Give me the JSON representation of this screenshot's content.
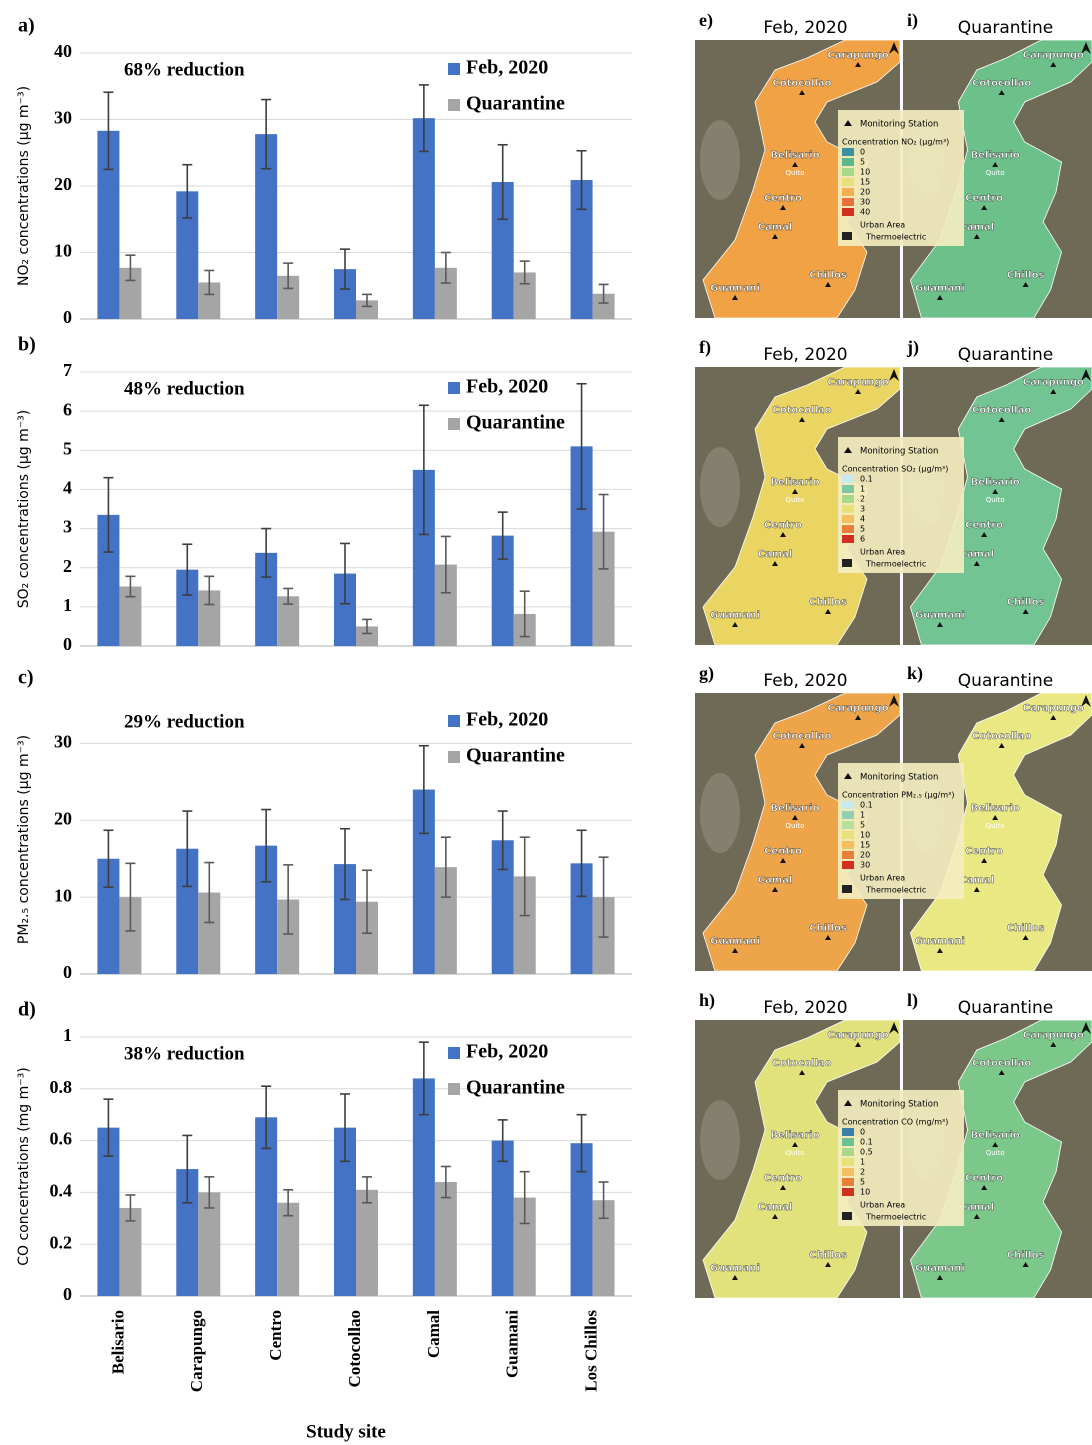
{
  "chart_data": [
    {
      "type": "bar",
      "panel_label": "a)",
      "annotation": "68% reduction",
      "ylabel": "NO₂ concentrations (µg m⁻³)",
      "ylim": [
        0,
        40
      ],
      "yticks": [
        0,
        10,
        20,
        30,
        40
      ],
      "grid": true,
      "legend": "upper right",
      "series": [
        {
          "name": "Feb, 2020",
          "color": "#4472c4",
          "values": [
            28.3,
            19.2,
            27.8,
            7.5,
            30.2,
            20.6,
            20.9
          ],
          "errors": [
            5.8,
            4.0,
            5.2,
            3.0,
            5.0,
            5.6,
            4.4
          ]
        },
        {
          "name": "Quarantine",
          "color": "#a5a5a5",
          "values": [
            7.7,
            5.5,
            6.5,
            2.8,
            7.7,
            7.0,
            3.8
          ],
          "errors": [
            1.9,
            1.8,
            1.9,
            0.9,
            2.3,
            1.7,
            1.4
          ]
        }
      ]
    },
    {
      "type": "bar",
      "panel_label": "b)",
      "annotation": "48% reduction",
      "ylabel": "SO₂ concentrations (µg m⁻³)",
      "ylim": [
        0,
        7
      ],
      "yticks": [
        0,
        1,
        2,
        3,
        4,
        5,
        6,
        7
      ],
      "grid": true,
      "legend": "upper right",
      "series": [
        {
          "name": "Feb, 2020",
          "color": "#4472c4",
          "values": [
            3.35,
            1.95,
            2.38,
            1.85,
            4.5,
            2.82,
            5.1
          ],
          "errors": [
            0.95,
            0.65,
            0.62,
            0.77,
            1.65,
            0.6,
            1.6
          ]
        },
        {
          "name": "Quarantine",
          "color": "#a5a5a5",
          "values": [
            1.52,
            1.42,
            1.27,
            0.5,
            2.08,
            0.82,
            2.92
          ],
          "errors": [
            0.26,
            0.36,
            0.2,
            0.18,
            0.72,
            0.58,
            0.95
          ]
        }
      ]
    },
    {
      "type": "bar",
      "panel_label": "c)",
      "annotation": "29% reduction",
      "ylabel": "PM₂.₅ concentrations (µg m⁻³)",
      "ylim": [
        0,
        35
      ],
      "yticks": [
        0,
        10,
        20,
        30
      ],
      "grid": true,
      "legend": "upper right",
      "series": [
        {
          "name": "Feb, 2020",
          "color": "#4472c4",
          "values": [
            15.0,
            16.3,
            16.7,
            14.3,
            24.0,
            17.4,
            14.4
          ],
          "errors": [
            3.7,
            4.9,
            4.7,
            4.6,
            5.7,
            3.8,
            4.3
          ]
        },
        {
          "name": "Quarantine",
          "color": "#a5a5a5",
          "values": [
            10.0,
            10.6,
            9.7,
            9.4,
            13.9,
            12.7,
            10.0
          ],
          "errors": [
            4.4,
            3.9,
            4.5,
            4.1,
            3.9,
            5.1,
            5.2
          ]
        }
      ]
    },
    {
      "type": "bar",
      "panel_label": "d)",
      "annotation": "38% reduction",
      "ylabel": "CO concentrations (mg m⁻³)",
      "xlabel": "Study site",
      "categories": [
        "Belisario",
        "Carapungo",
        "Centro",
        "Cotocollao",
        "Camal",
        "Guamani",
        "Los Chillos"
      ],
      "ylim": [
        0,
        1
      ],
      "yticks": [
        0,
        0.2,
        0.4,
        0.6,
        0.8,
        1
      ],
      "grid": true,
      "legend": "upper right",
      "series": [
        {
          "name": "Feb, 2020",
          "color": "#4472c4",
          "values": [
            0.65,
            0.49,
            0.69,
            0.65,
            0.84,
            0.6,
            0.59
          ],
          "errors": [
            0.11,
            0.13,
            0.12,
            0.13,
            0.14,
            0.08,
            0.11
          ]
        },
        {
          "name": "Quarantine",
          "color": "#a5a5a5",
          "values": [
            0.34,
            0.4,
            0.36,
            0.41,
            0.44,
            0.38,
            0.37
          ],
          "errors": [
            0.05,
            0.06,
            0.05,
            0.05,
            0.06,
            0.1,
            0.07
          ]
        }
      ]
    }
  ],
  "maps": {
    "stations": [
      "Carapungo",
      "Cotocollao",
      "Belisario",
      "Centro",
      "Camal",
      "Chillos",
      "Guamani"
    ],
    "city": "Quito",
    "legend_station": "Monitoring Station",
    "legend_urban": "Urban Area",
    "legend_thermo": "Thermoelectric",
    "rows": [
      {
        "legend_title": "Concentration NO₂ (µg/m³)",
        "levels": [
          {
            "label": "0",
            "color": "#3a8fa0"
          },
          {
            "label": "5",
            "color": "#5cb88a"
          },
          {
            "label": "10",
            "color": "#a8d88a"
          },
          {
            "label": "15",
            "color": "#e8e07a"
          },
          {
            "label": "20",
            "color": "#f2b050"
          },
          {
            "label": "30",
            "color": "#e8703a"
          },
          {
            "label": "40",
            "color": "#d03020"
          }
        ],
        "panels": [
          {
            "label": "e)",
            "title": "Feb, 2020",
            "color": "#f0a245"
          },
          {
            "label": "i)",
            "title": "Quarantine",
            "color": "#6cc08a"
          }
        ]
      },
      {
        "legend_title": "Concentration SO₂ (µg/m³)",
        "levels": [
          {
            "label": "0.1",
            "color": "#c9e9f0"
          },
          {
            "label": "1",
            "color": "#7cc8a0"
          },
          {
            "label": "2",
            "color": "#a8d88a"
          },
          {
            "label": "3",
            "color": "#e8e07a"
          },
          {
            "label": "4",
            "color": "#f2c060"
          },
          {
            "label": "5",
            "color": "#e8803a"
          },
          {
            "label": "6",
            "color": "#d03020"
          }
        ],
        "panels": [
          {
            "label": "f)",
            "title": "Feb, 2020",
            "color": "#ead462"
          },
          {
            "label": "j)",
            "title": "Quarantine",
            "color": "#72c592"
          }
        ]
      },
      {
        "legend_title": "Concentration PM₂.₅ (µg/m³)",
        "levels": [
          {
            "label": "0.1",
            "color": "#c9e9f0"
          },
          {
            "label": "1",
            "color": "#8fd0b0"
          },
          {
            "label": "5",
            "color": "#b8e09a"
          },
          {
            "label": "10",
            "color": "#e8e07a"
          },
          {
            "label": "15",
            "color": "#f2c060"
          },
          {
            "label": "20",
            "color": "#e8803a"
          },
          {
            "label": "30",
            "color": "#d03020"
          }
        ],
        "panels": [
          {
            "label": "g)",
            "title": "Feb, 2020",
            "color": "#eea448"
          },
          {
            "label": "k)",
            "title": "Quarantine",
            "color": "#e9e882"
          }
        ]
      },
      {
        "legend_title": "Concentration CO (mg/m³)",
        "levels": [
          {
            "label": "0",
            "color": "#3a7fa8"
          },
          {
            "label": "0.1",
            "color": "#6cc090"
          },
          {
            "label": "0.5",
            "color": "#a8d88a"
          },
          {
            "label": "1",
            "color": "#e8e07a"
          },
          {
            "label": "2",
            "color": "#f2c060"
          },
          {
            "label": "5",
            "color": "#e8803a"
          },
          {
            "label": "10",
            "color": "#d03020"
          }
        ],
        "panels": [
          {
            "label": "h)",
            "title": "Feb, 2020",
            "color": "#e2e27c"
          },
          {
            "label": "l)",
            "title": "Quarantine",
            "color": "#7cc88a"
          }
        ]
      }
    ]
  }
}
